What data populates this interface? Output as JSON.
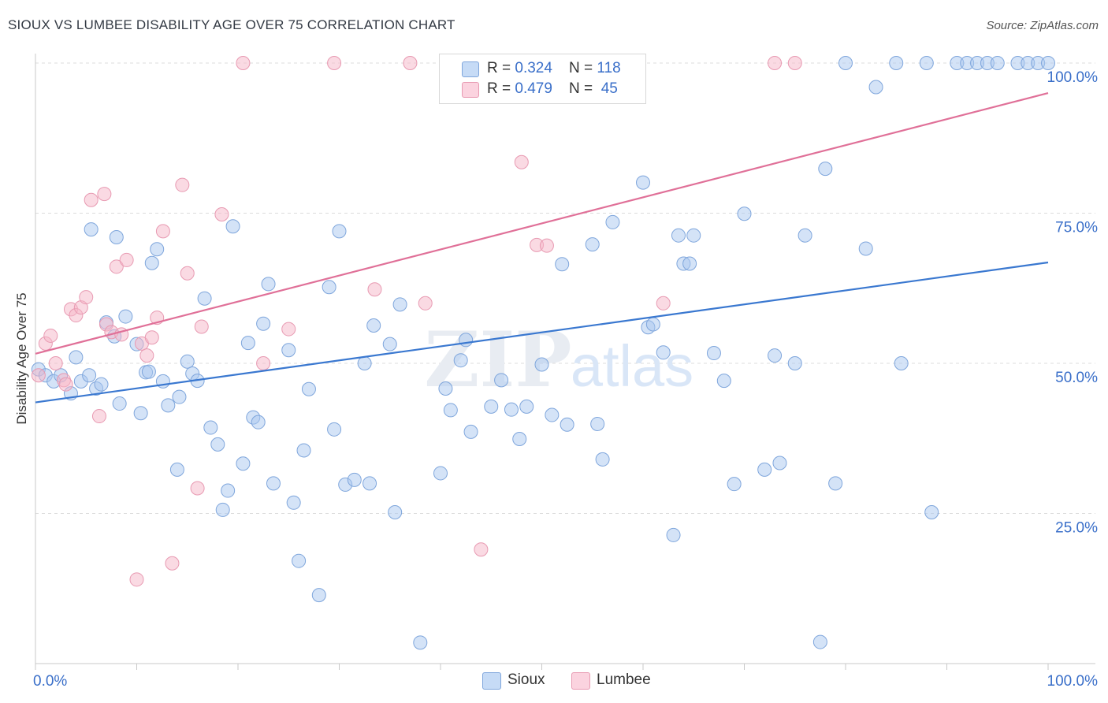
{
  "title": "SIOUX VS LUMBEE DISABILITY AGE OVER 75 CORRELATION CHART",
  "source": "Source: ZipAtlas.com",
  "watermark": {
    "zip": "ZIP",
    "atlas": "atlas"
  },
  "legend": {
    "rows": [
      {
        "r_label": "R = ",
        "r_value": "0.324",
        "n_label": "N = ",
        "n_value": "118",
        "color": "#a9c7f0"
      },
      {
        "r_label": "R = ",
        "r_value": "0.479",
        "n_label": "N = ",
        "n_value": " 45",
        "color": "#f5b6c8"
      }
    ]
  },
  "chart_data": {
    "type": "scatter",
    "title": "SIOUX VS LUMBEE DISABILITY AGE OVER 75 CORRELATION CHART",
    "xlabel": "",
    "ylabel": "Disability Age Over 75",
    "xlim": [
      0,
      100
    ],
    "ylim": [
      0,
      105
    ],
    "x_tick_labels": [
      "0.0%",
      "100.0%"
    ],
    "y_tick_labels": [
      "25.0%",
      "50.0%",
      "75.0%",
      "100.0%"
    ],
    "y_ticks": [
      25,
      50,
      75,
      100
    ],
    "grid": true,
    "legend_position": "top-center",
    "series": [
      {
        "name": "Sioux",
        "color": "#a9c7f0",
        "stroke": "#7fa6dc",
        "trend": {
          "x": [
            0,
            100
          ],
          "y": [
            43.5,
            66.8
          ],
          "color": "#3a78d0"
        },
        "points": [
          [
            0.3,
            49
          ],
          [
            1,
            48
          ],
          [
            1.8,
            47
          ],
          [
            2.5,
            48
          ],
          [
            3.5,
            45
          ],
          [
            4,
            51
          ],
          [
            4.5,
            47
          ],
          [
            6,
            45.8
          ],
          [
            5.3,
            48
          ],
          [
            5.5,
            72.3
          ],
          [
            6.5,
            46.5
          ],
          [
            7,
            56.8
          ],
          [
            7.8,
            54.5
          ],
          [
            8,
            71
          ],
          [
            8.3,
            43.3
          ],
          [
            8.9,
            57.8
          ],
          [
            10,
            53.2
          ],
          [
            10.4,
            41.7
          ],
          [
            10.9,
            48.5
          ],
          [
            11.2,
            48.6
          ],
          [
            11.5,
            66.7
          ],
          [
            12,
            69
          ],
          [
            12.6,
            47
          ],
          [
            13.1,
            43
          ],
          [
            14.2,
            44.4
          ],
          [
            14,
            32.3
          ],
          [
            15,
            50.3
          ],
          [
            15.5,
            48.3
          ],
          [
            16,
            47.1
          ],
          [
            16.7,
            60.8
          ],
          [
            17.3,
            39.3
          ],
          [
            18,
            36.5
          ],
          [
            18.5,
            25.6
          ],
          [
            19,
            28.8
          ],
          [
            19.5,
            72.8
          ],
          [
            20.5,
            33.3
          ],
          [
            21,
            53.4
          ],
          [
            21.5,
            41
          ],
          [
            22,
            40.2
          ],
          [
            22.5,
            56.6
          ],
          [
            23,
            63.2
          ],
          [
            23.5,
            30
          ],
          [
            25,
            52.2
          ],
          [
            25.5,
            26.8
          ],
          [
            26,
            17.1
          ],
          [
            26.5,
            35.5
          ],
          [
            27,
            45.7
          ],
          [
            28,
            11.4
          ],
          [
            29,
            62.7
          ],
          [
            29.5,
            39
          ],
          [
            30,
            72
          ],
          [
            30.6,
            29.8
          ],
          [
            31.5,
            30.6
          ],
          [
            32.5,
            50
          ],
          [
            33,
            30
          ],
          [
            33.4,
            56.3
          ],
          [
            35,
            53.2
          ],
          [
            35.5,
            25.2
          ],
          [
            36,
            59.8
          ],
          [
            38,
            3.5
          ],
          [
            40,
            31.7
          ],
          [
            40.5,
            45.8
          ],
          [
            41,
            42.2
          ],
          [
            42,
            50.5
          ],
          [
            42.5,
            53.9
          ],
          [
            43,
            38.6
          ],
          [
            45,
            42.8
          ],
          [
            46,
            47.2
          ],
          [
            47,
            42.3
          ],
          [
            47.8,
            37.4
          ],
          [
            48.5,
            42.8
          ],
          [
            50,
            49.8
          ],
          [
            51,
            41.4
          ],
          [
            52,
            66.5
          ],
          [
            52.5,
            39.8
          ],
          [
            55,
            69.8
          ],
          [
            55.5,
            39.9
          ],
          [
            56,
            34
          ],
          [
            57,
            73.5
          ],
          [
            58,
            100
          ],
          [
            59,
            100
          ],
          [
            60,
            80.1
          ],
          [
            60.5,
            56
          ],
          [
            61,
            56.5
          ],
          [
            62,
            51.8
          ],
          [
            63,
            21.4
          ],
          [
            63.5,
            71.3
          ],
          [
            64,
            66.6
          ],
          [
            64.6,
            66.6
          ],
          [
            65,
            71.3
          ],
          [
            67,
            51.7
          ],
          [
            68,
            47.1
          ],
          [
            69,
            29.9
          ],
          [
            70,
            74.9
          ],
          [
            72,
            32.3
          ],
          [
            73,
            51.3
          ],
          [
            73.5,
            33.4
          ],
          [
            75,
            50
          ],
          [
            76,
            71.3
          ],
          [
            77.5,
            3.6
          ],
          [
            78,
            82.4
          ],
          [
            79,
            30
          ],
          [
            80,
            100
          ],
          [
            82,
            69.1
          ],
          [
            83,
            96
          ],
          [
            85,
            100
          ],
          [
            85.5,
            50
          ],
          [
            88,
            100
          ],
          [
            88.5,
            25.2
          ],
          [
            91,
            100
          ],
          [
            92,
            100
          ],
          [
            93,
            100
          ],
          [
            94,
            100
          ],
          [
            95,
            100
          ],
          [
            97,
            100
          ],
          [
            98,
            100
          ],
          [
            99,
            100
          ],
          [
            100,
            100
          ]
        ]
      },
      {
        "name": "Lumbee",
        "color": "#f5b6c8",
        "stroke": "#e89ab2",
        "trend": {
          "x": [
            0,
            100
          ],
          "y": [
            51.6,
            95
          ],
          "color": "#e07098"
        },
        "points": [
          [
            0.3,
            48
          ],
          [
            1,
            53.3
          ],
          [
            1.5,
            54.6
          ],
          [
            2,
            50
          ],
          [
            2.8,
            47.2
          ],
          [
            3,
            46.5
          ],
          [
            3.5,
            59
          ],
          [
            4,
            58
          ],
          [
            4.5,
            59.3
          ],
          [
            5,
            61
          ],
          [
            5.5,
            77.2
          ],
          [
            6.3,
            41.2
          ],
          [
            6.8,
            78.2
          ],
          [
            7,
            56.5
          ],
          [
            7.5,
            55.2
          ],
          [
            8,
            66.1
          ],
          [
            8.5,
            54.8
          ],
          [
            9,
            67.2
          ],
          [
            10,
            14
          ],
          [
            10.5,
            53.3
          ],
          [
            11,
            51.3
          ],
          [
            11.5,
            54.3
          ],
          [
            12,
            57.6
          ],
          [
            12.6,
            72
          ],
          [
            13.5,
            16.7
          ],
          [
            14.5,
            79.7
          ],
          [
            15,
            65
          ],
          [
            16,
            29.2
          ],
          [
            16.4,
            56.1
          ],
          [
            18.4,
            74.8
          ],
          [
            20.5,
            100
          ],
          [
            22.5,
            50
          ],
          [
            25,
            55.7
          ],
          [
            29.5,
            100
          ],
          [
            33.5,
            62.3
          ],
          [
            37,
            100
          ],
          [
            38.5,
            60
          ],
          [
            44,
            19
          ],
          [
            48,
            83.5
          ],
          [
            49.5,
            69.7
          ],
          [
            50.5,
            69.6
          ],
          [
            54,
            100
          ],
          [
            62,
            60
          ],
          [
            73,
            100
          ],
          [
            75,
            100
          ]
        ]
      }
    ]
  },
  "bottom_legend": [
    {
      "label": "Sioux",
      "color": "#a9c7f0"
    },
    {
      "label": "Lumbee",
      "color": "#f5b6c8"
    }
  ]
}
